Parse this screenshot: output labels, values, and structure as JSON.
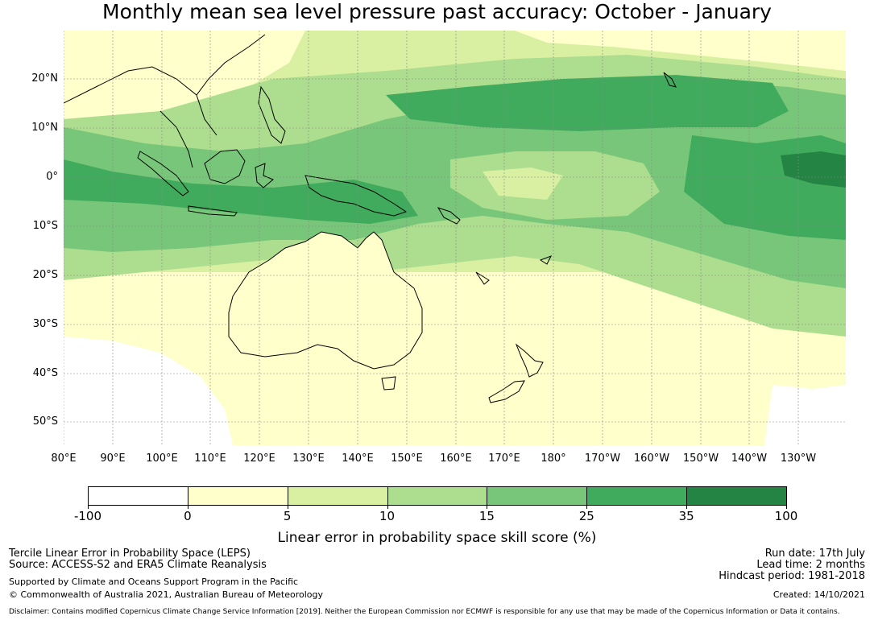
{
  "title": "Monthly mean sea level pressure past accuracy: October - January",
  "map": {
    "lat_labels": [
      "20°N",
      "10°N",
      "0°",
      "10°S",
      "20°S",
      "30°S",
      "40°S",
      "50°S"
    ],
    "lon_labels": [
      "80°E",
      "90°E",
      "100°E",
      "110°E",
      "120°E",
      "130°E",
      "140°E",
      "150°E",
      "160°E",
      "170°E",
      "180°",
      "170°W",
      "160°W",
      "150°W",
      "140°W",
      "130°W"
    ]
  },
  "colorbar": {
    "title": "Linear error in probability space skill score (%)",
    "ticks": [
      "-100",
      "0",
      "5",
      "10",
      "15",
      "25",
      "35",
      "100"
    ],
    "colors": [
      "#ffffff",
      "#ffffcc",
      "#d9f0a3",
      "#addd8e",
      "#78c679",
      "#41ab5d",
      "#238443"
    ]
  },
  "footer": {
    "line1": "Tercile Linear Error in Probability Space (LEPS)",
    "line2": "Source: ACCESS-S2 and ERA5 Climate Reanalysis",
    "line3": "Supported by Climate and Oceans Support Program in the Pacific",
    "line4": "© Commonwealth of Australia 2021, Australian Bureau of Meteorology",
    "run_date": "Run date: 17th July",
    "lead_time": "Lead time: 2 months",
    "hindcast": "Hindcast period: 1981-2018",
    "created": "Created: 14/10/2021",
    "disclaimer": "Disclaimer: Contains modified Copernicus Climate Change Service Information [2019]. Neither the European Commission nor ECMWF is responsible for any use that may be made of the Copernicus Information or Data it contains."
  }
}
